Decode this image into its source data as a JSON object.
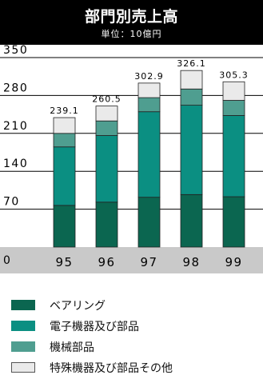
{
  "header": {
    "title": "部門別売上高",
    "subtitle": "単位：10億円"
  },
  "colors": {
    "bearings": "#0b6650",
    "electronics": "#0b8f82",
    "machinery": "#4f9e90",
    "other": "#eaeaea",
    "axis_band": "#c9c9c9"
  },
  "chart_data": {
    "type": "bar",
    "stacked": true,
    "title": "部門別売上高",
    "subtitle": "単位：10億円",
    "categories": [
      "95",
      "96",
      "97",
      "98",
      "99"
    ],
    "ylim": [
      0,
      350
    ],
    "yticks": [
      0,
      70,
      140,
      210,
      280,
      350
    ],
    "grid": true,
    "totals": [
      239.1,
      260.5,
      302.9,
      326.1,
      305.3
    ],
    "total_labels": [
      "239.1",
      "260.5",
      "302.9",
      "326.1",
      "305.3"
    ],
    "series": [
      {
        "name": "ベアリング",
        "color": "#0b6650",
        "values": [
          77,
          83,
          92,
          97,
          93
        ]
      },
      {
        "name": "電子機器及び部品",
        "color": "#0b8f82",
        "values": [
          108,
          123,
          158,
          165,
          150
        ]
      },
      {
        "name": "機械部品",
        "color": "#4f9e90",
        "values": [
          25,
          27,
          26,
          30,
          28
        ]
      },
      {
        "name": "特殊機器及び部品その他",
        "color": "#eaeaea",
        "values": [
          29.1,
          27.5,
          26.9,
          34.1,
          34.3
        ]
      }
    ]
  },
  "legend": [
    {
      "label": "ベアリング",
      "color": "#0b6650"
    },
    {
      "label": "電子機器及び部品",
      "color": "#0b8f82"
    },
    {
      "label": "機械部品",
      "color": "#4f9e90"
    },
    {
      "label": "特殊機器及び部品その他",
      "color": "#eaeaea"
    }
  ]
}
